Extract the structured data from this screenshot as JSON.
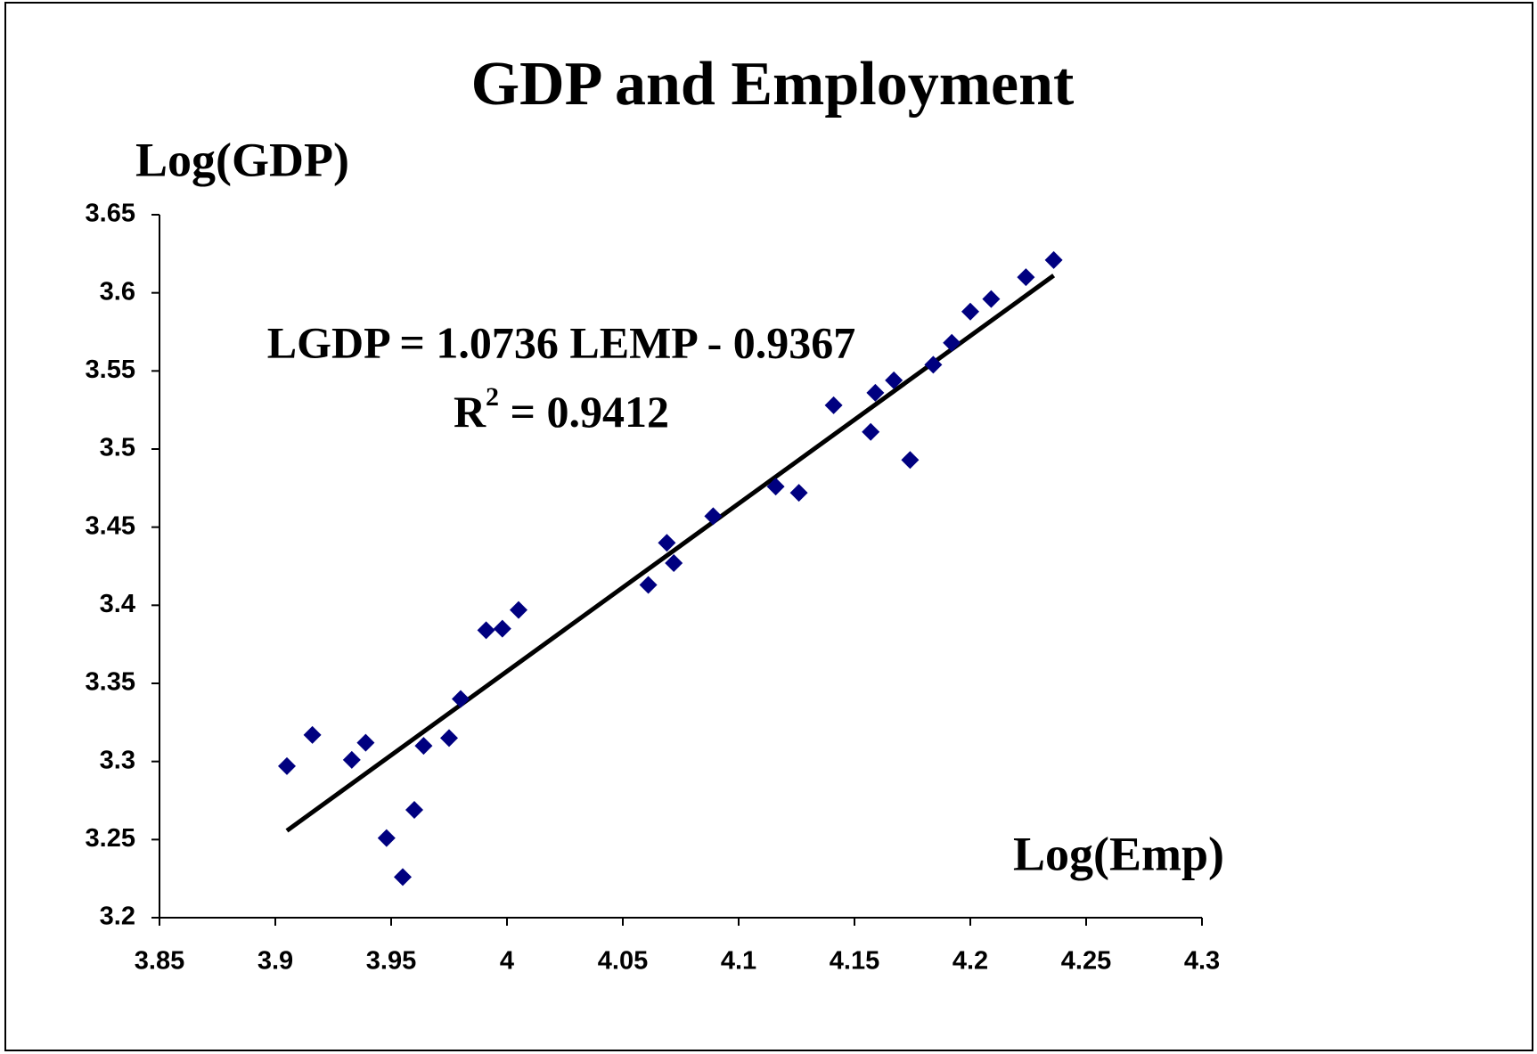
{
  "chart_data": {
    "type": "scatter",
    "title": "GDP and Employment",
    "y_label": "Log(GDP)",
    "x_label": "Log(Emp)",
    "equation": "LGDP = 1.0736 LEMP - 0.9367",
    "r_squared": {
      "base": "R",
      "sup": "2",
      "rest": " = 0.9412"
    },
    "xlim": [
      3.85,
      4.3
    ],
    "xticks": [
      3.85,
      3.9,
      3.95,
      4,
      4.05,
      4.1,
      4.15,
      4.2,
      4.25,
      4.3
    ],
    "ylim": [
      3.2,
      3.65
    ],
    "yticks": [
      3.2,
      3.25,
      3.3,
      3.35,
      3.4,
      3.45,
      3.5,
      3.55,
      3.6,
      3.65
    ],
    "series": [
      {
        "color": "#000080",
        "x": [
          3.905,
          3.916,
          3.933,
          3.939,
          3.948,
          3.955,
          3.96,
          3.964,
          3.975,
          3.98,
          3.991,
          3.998,
          4.005,
          4.061,
          4.069,
          4.072,
          4.089,
          4.116,
          4.126,
          4.141,
          4.157,
          4.159,
          4.167,
          4.174,
          4.184,
          4.192,
          4.2,
          4.209,
          4.224,
          4.236
        ],
        "values": [
          3.297,
          3.317,
          3.301,
          3.312,
          3.251,
          3.226,
          3.269,
          3.31,
          3.315,
          3.34,
          3.384,
          3.385,
          3.397,
          3.413,
          3.44,
          3.427,
          3.457,
          3.476,
          3.472,
          3.528,
          3.511,
          3.536,
          3.544,
          3.493,
          3.554,
          3.568,
          3.588,
          3.596,
          3.61,
          3.621
        ]
      }
    ],
    "trendline": {
      "color": "#000000",
      "x": [
        3.905,
        4.236
      ],
      "values": [
        3.2557,
        3.6111
      ]
    }
  }
}
